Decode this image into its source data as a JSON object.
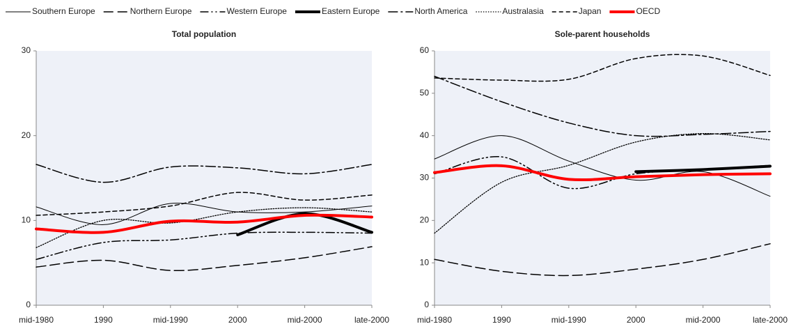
{
  "chart_data": [
    {
      "type": "line",
      "title": "Total population",
      "categories": [
        "mid-1980",
        "1990",
        "mid-1990",
        "2000",
        "mid-2000",
        "late-2000"
      ],
      "ylim": [
        0,
        30
      ],
      "yticks": [
        0,
        10,
        20,
        30
      ],
      "series": [
        {
          "name": "Southern Europe",
          "color": "#000000",
          "style": "solid",
          "width": 1,
          "values": [
            11.6,
            9.5,
            12,
            11,
            11,
            11.7
          ]
        },
        {
          "name": "Northern Europe",
          "color": "#000000",
          "style": "longdash",
          "width": 1.5,
          "values": [
            4.5,
            5.3,
            4.1,
            4.7,
            5.6,
            6.9
          ]
        },
        {
          "name": "Western Europe",
          "color": "#000000",
          "style": "dashdotdot",
          "width": 1.5,
          "values": [
            5.4,
            7.4,
            7.7,
            8.5,
            8.6,
            8.5
          ]
        },
        {
          "name": "Eastern Europe",
          "color": "#000000",
          "style": "solid",
          "width": 4,
          "values": [
            null,
            null,
            null,
            8.3,
            10.8,
            8.6
          ]
        },
        {
          "name": "North America",
          "color": "#000000",
          "style": "dashdot",
          "width": 1.5,
          "values": [
            16.6,
            14.5,
            16.3,
            16.2,
            15.5,
            16.6
          ]
        },
        {
          "name": "Australasia",
          "color": "#000000",
          "style": "dotted",
          "width": 1.3,
          "values": [
            6.8,
            10,
            9.7,
            11,
            11.5,
            11
          ]
        },
        {
          "name": "Japan",
          "color": "#000000",
          "style": "dashed",
          "width": 1.5,
          "values": [
            10.6,
            11,
            11.7,
            13.3,
            12.4,
            13
          ]
        },
        {
          "name": "OECD",
          "color": "#ff0000",
          "style": "solid",
          "width": 4,
          "values": [
            9,
            8.6,
            9.9,
            9.8,
            10.6,
            10.4
          ]
        }
      ]
    },
    {
      "type": "line",
      "title": "Sole-parent households",
      "categories": [
        "mid-1980",
        "1990",
        "mid-1990",
        "2000",
        "mid-2000",
        "late-2000"
      ],
      "ylim": [
        0,
        60
      ],
      "yticks": [
        0,
        10,
        20,
        30,
        40,
        50,
        60
      ],
      "series": [
        {
          "name": "Southern Europe",
          "color": "#000000",
          "style": "solid",
          "width": 1,
          "values": [
            34.5,
            40,
            34,
            29.5,
            31.5,
            25.7
          ]
        },
        {
          "name": "Northern Europe",
          "color": "#000000",
          "style": "longdash",
          "width": 1.5,
          "values": [
            10.8,
            8,
            7,
            8.5,
            10.8,
            14.5
          ]
        },
        {
          "name": "Western Europe",
          "color": "#000000",
          "style": "dashdotdot",
          "width": 1.5,
          "values": [
            31,
            35,
            27.6,
            31,
            32,
            33
          ]
        },
        {
          "name": "Eastern Europe",
          "color": "#000000",
          "style": "solid",
          "width": 4,
          "values": [
            null,
            null,
            null,
            31.5,
            32,
            32.8
          ]
        },
        {
          "name": "North America",
          "color": "#000000",
          "style": "dashdot",
          "width": 1.5,
          "values": [
            54,
            48,
            43,
            40,
            40.3,
            41
          ]
        },
        {
          "name": "Australasia",
          "color": "#000000",
          "style": "dotted",
          "width": 1.3,
          "values": [
            17,
            29,
            33,
            38.5,
            40.5,
            39
          ]
        },
        {
          "name": "Japan",
          "color": "#000000",
          "style": "dashed",
          "width": 1.5,
          "values": [
            53.6,
            53.1,
            53.3,
            58.2,
            58.8,
            54.2
          ]
        },
        {
          "name": "OECD",
          "color": "#ff0000",
          "style": "solid",
          "width": 4,
          "values": [
            31.3,
            32.9,
            29.7,
            30.3,
            30.8,
            31
          ]
        }
      ]
    }
  ]
}
